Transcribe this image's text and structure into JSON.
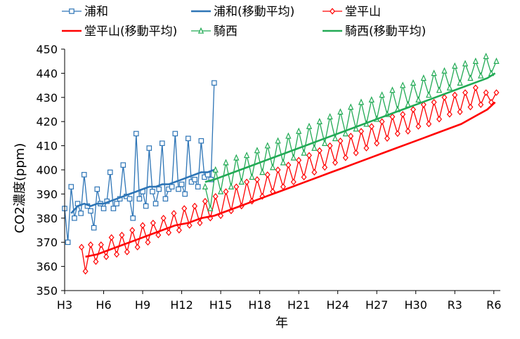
{
  "chart_data": {
    "type": "line",
    "xlabel": "年",
    "ylabel": "CO2濃度(ppm)",
    "ylim": [
      350,
      450
    ],
    "yticks": [
      350,
      360,
      370,
      380,
      390,
      400,
      410,
      420,
      430,
      440,
      450
    ],
    "xlim": [
      1991,
      2024.5
    ],
    "xticks": [
      {
        "label": "H3",
        "year": 1991
      },
      {
        "label": "H6",
        "year": 1994
      },
      {
        "label": "H9",
        "year": 1997
      },
      {
        "label": "H12",
        "year": 2000
      },
      {
        "label": "H15",
        "year": 2003
      },
      {
        "label": "H18",
        "year": 2006
      },
      {
        "label": "H21",
        "year": 2009
      },
      {
        "label": "H24",
        "year": 2012
      },
      {
        "label": "H27",
        "year": 2015
      },
      {
        "label": "H30",
        "year": 2018
      },
      {
        "label": "R3",
        "year": 2021
      },
      {
        "label": "R6",
        "year": 2024
      }
    ],
    "grid": false,
    "legend_position": "top",
    "series": [
      {
        "name": "浦和",
        "color": "#2e75b6",
        "marker": "square",
        "kind": "monthly",
        "x": [
          1991.0,
          1991.25,
          1991.5,
          1991.75,
          1992.0,
          1992.25,
          1992.5,
          1992.75,
          1993.0,
          1993.25,
          1993.5,
          1993.75,
          1994.0,
          1994.25,
          1994.5,
          1994.75,
          1995.0,
          1995.25,
          1995.5,
          1995.75,
          1996.0,
          1996.25,
          1996.5,
          1996.75,
          1997.0,
          1997.25,
          1997.5,
          1997.75,
          1998.0,
          1998.25,
          1998.5,
          1998.75,
          1999.0,
          1999.25,
          1999.5,
          1999.75,
          2000.0,
          2000.25,
          2000.5,
          2000.75,
          2001.0,
          2001.25,
          2001.5,
          2001.75,
          2002.0,
          2002.25,
          2002.5
        ],
        "y": [
          384,
          370,
          393,
          380,
          386,
          382,
          398,
          385,
          383,
          376,
          392,
          386,
          384,
          387,
          399,
          384,
          386,
          388,
          402,
          389,
          388,
          380,
          415,
          388,
          391,
          385,
          409,
          391,
          386,
          392,
          411,
          388,
          392,
          393,
          415,
          392,
          394,
          390,
          413,
          395,
          396,
          393,
          412,
          397,
          398,
          396,
          436
        ]
      },
      {
        "name": "浦和(移動平均)",
        "color": "#2e75b6",
        "marker": "none",
        "kind": "moving_average",
        "x": [
          1991.5,
          1992.0,
          1992.5,
          1993.0,
          1993.5,
          1994.0,
          1994.5,
          1995.0,
          1995.5,
          1996.0,
          1996.5,
          1997.0,
          1997.5,
          1998.0,
          1998.5,
          1999.0,
          1999.5,
          2000.0,
          2000.5,
          2001.0,
          2001.5,
          2002.0,
          2002.5
        ],
        "y": [
          382,
          385,
          386,
          385,
          386,
          386,
          387,
          388,
          389,
          390,
          391,
          392,
          393,
          393,
          394,
          394,
          395,
          396,
          397,
          398,
          399,
          399,
          400
        ]
      },
      {
        "name": "堂平山",
        "color": "#ff0000",
        "marker": "diamond",
        "kind": "monthly",
        "x": [
          1992.3,
          1992.6,
          1993.0,
          1993.4,
          1993.8,
          1994.2,
          1994.6,
          1995.0,
          1995.4,
          1995.8,
          1996.2,
          1996.6,
          1997.0,
          1997.4,
          1997.8,
          1998.2,
          1998.6,
          1999.0,
          1999.4,
          1999.8,
          2000.2,
          2000.6,
          2001.0,
          2001.4,
          2001.8,
          2002.2,
          2002.6,
          2003.0,
          2003.4,
          2003.8,
          2004.2,
          2004.6,
          2005.0,
          2005.4,
          2005.8,
          2006.2,
          2006.6,
          2007.0,
          2007.4,
          2007.8,
          2008.2,
          2008.6,
          2009.0,
          2009.4,
          2009.8,
          2010.2,
          2010.6,
          2011.0,
          2011.4,
          2011.8,
          2012.2,
          2012.6,
          2013.0,
          2013.4,
          2013.8,
          2014.2,
          2014.6,
          2015.0,
          2015.4,
          2015.8,
          2016.2,
          2016.6,
          2017.0,
          2017.4,
          2017.8,
          2018.2,
          2018.6,
          2019.0,
          2019.4,
          2019.8,
          2020.2,
          2020.6,
          2021.0,
          2021.4,
          2021.8,
          2022.2,
          2022.6,
          2023.0,
          2023.4,
          2023.8,
          2024.2
        ],
        "y": [
          368,
          358,
          369,
          362,
          369,
          364,
          372,
          365,
          373,
          366,
          375,
          368,
          377,
          370,
          378,
          373,
          380,
          374,
          382,
          375,
          384,
          377,
          385,
          378,
          387,
          380,
          389,
          381,
          391,
          383,
          393,
          385,
          395,
          387,
          396,
          389,
          398,
          391,
          400,
          393,
          402,
          395,
          404,
          397,
          406,
          399,
          408,
          401,
          410,
          403,
          412,
          405,
          414,
          407,
          416,
          409,
          418,
          411,
          420,
          413,
          422,
          415,
          423,
          416,
          425,
          418,
          427,
          419,
          428,
          421,
          430,
          423,
          431,
          424,
          432,
          426,
          434,
          427,
          432,
          428,
          432
        ]
      },
      {
        "name": "堂平山(移動平均)",
        "color": "#ff0000",
        "marker": "none",
        "kind": "moving_average",
        "x": [
          1992.6,
          1993.5,
          1994.5,
          1995.5,
          1996.5,
          1997.5,
          1998.5,
          1999.5,
          2000.5,
          2001.5,
          2002.5,
          2003.5,
          2004.5,
          2005.5,
          2006.5,
          2007.5,
          2008.5,
          2009.5,
          2010.5,
          2011.5,
          2012.5,
          2013.5,
          2014.5,
          2015.5,
          2016.5,
          2017.5,
          2018.5,
          2019.5,
          2020.5,
          2021.5,
          2022.5,
          2023.5,
          2024.1
        ],
        "y": [
          364,
          365,
          367,
          369,
          371,
          373,
          375,
          377,
          378,
          380,
          381,
          383,
          385,
          387,
          389,
          391,
          393,
          395,
          397,
          399,
          401,
          403,
          405,
          407,
          409,
          411,
          413,
          415,
          417,
          419,
          422,
          425,
          428
        ]
      },
      {
        "name": "騎西",
        "color": "#22aa55",
        "marker": "triangle",
        "kind": "monthly",
        "x": [
          2001.8,
          2002.2,
          2002.6,
          2003.0,
          2003.4,
          2003.8,
          2004.2,
          2004.6,
          2005.0,
          2005.4,
          2005.8,
          2006.2,
          2006.6,
          2007.0,
          2007.4,
          2007.8,
          2008.2,
          2008.6,
          2009.0,
          2009.4,
          2009.8,
          2010.2,
          2010.6,
          2011.0,
          2011.4,
          2011.8,
          2012.2,
          2012.6,
          2013.0,
          2013.4,
          2013.8,
          2014.2,
          2014.6,
          2015.0,
          2015.4,
          2015.8,
          2016.2,
          2016.6,
          2017.0,
          2017.4,
          2017.8,
          2018.2,
          2018.6,
          2019.0,
          2019.4,
          2019.8,
          2020.2,
          2020.6,
          2021.0,
          2021.4,
          2021.8,
          2022.2,
          2022.6,
          2023.0,
          2023.4,
          2023.8,
          2024.2
        ],
        "y": [
          393,
          384,
          400,
          391,
          403,
          393,
          405,
          395,
          406,
          397,
          408,
          399,
          410,
          401,
          412,
          403,
          414,
          405,
          416,
          407,
          418,
          409,
          420,
          411,
          422,
          413,
          424,
          415,
          426,
          417,
          428,
          419,
          429,
          421,
          431,
          423,
          433,
          425,
          435,
          427,
          436,
          429,
          438,
          431,
          440,
          433,
          441,
          434,
          443,
          436,
          444,
          438,
          445,
          439,
          447,
          440,
          445
        ]
      },
      {
        "name": "騎西(移動平均)",
        "color": "#22aa55",
        "marker": "none",
        "kind": "moving_average",
        "x": [
          2001.8,
          2002.5,
          2003.5,
          2004.5,
          2005.5,
          2006.5,
          2007.5,
          2008.5,
          2009.5,
          2010.5,
          2011.5,
          2012.5,
          2013.5,
          2014.5,
          2015.5,
          2016.5,
          2017.5,
          2018.5,
          2019.5,
          2020.5,
          2021.5,
          2022.5,
          2023.5,
          2024.1
        ],
        "y": [
          395,
          396,
          398,
          400,
          402,
          404,
          406,
          408,
          410,
          412,
          414,
          416,
          418,
          420,
          422,
          424,
          426,
          428,
          430,
          432,
          434,
          436,
          438,
          440
        ]
      }
    ]
  }
}
